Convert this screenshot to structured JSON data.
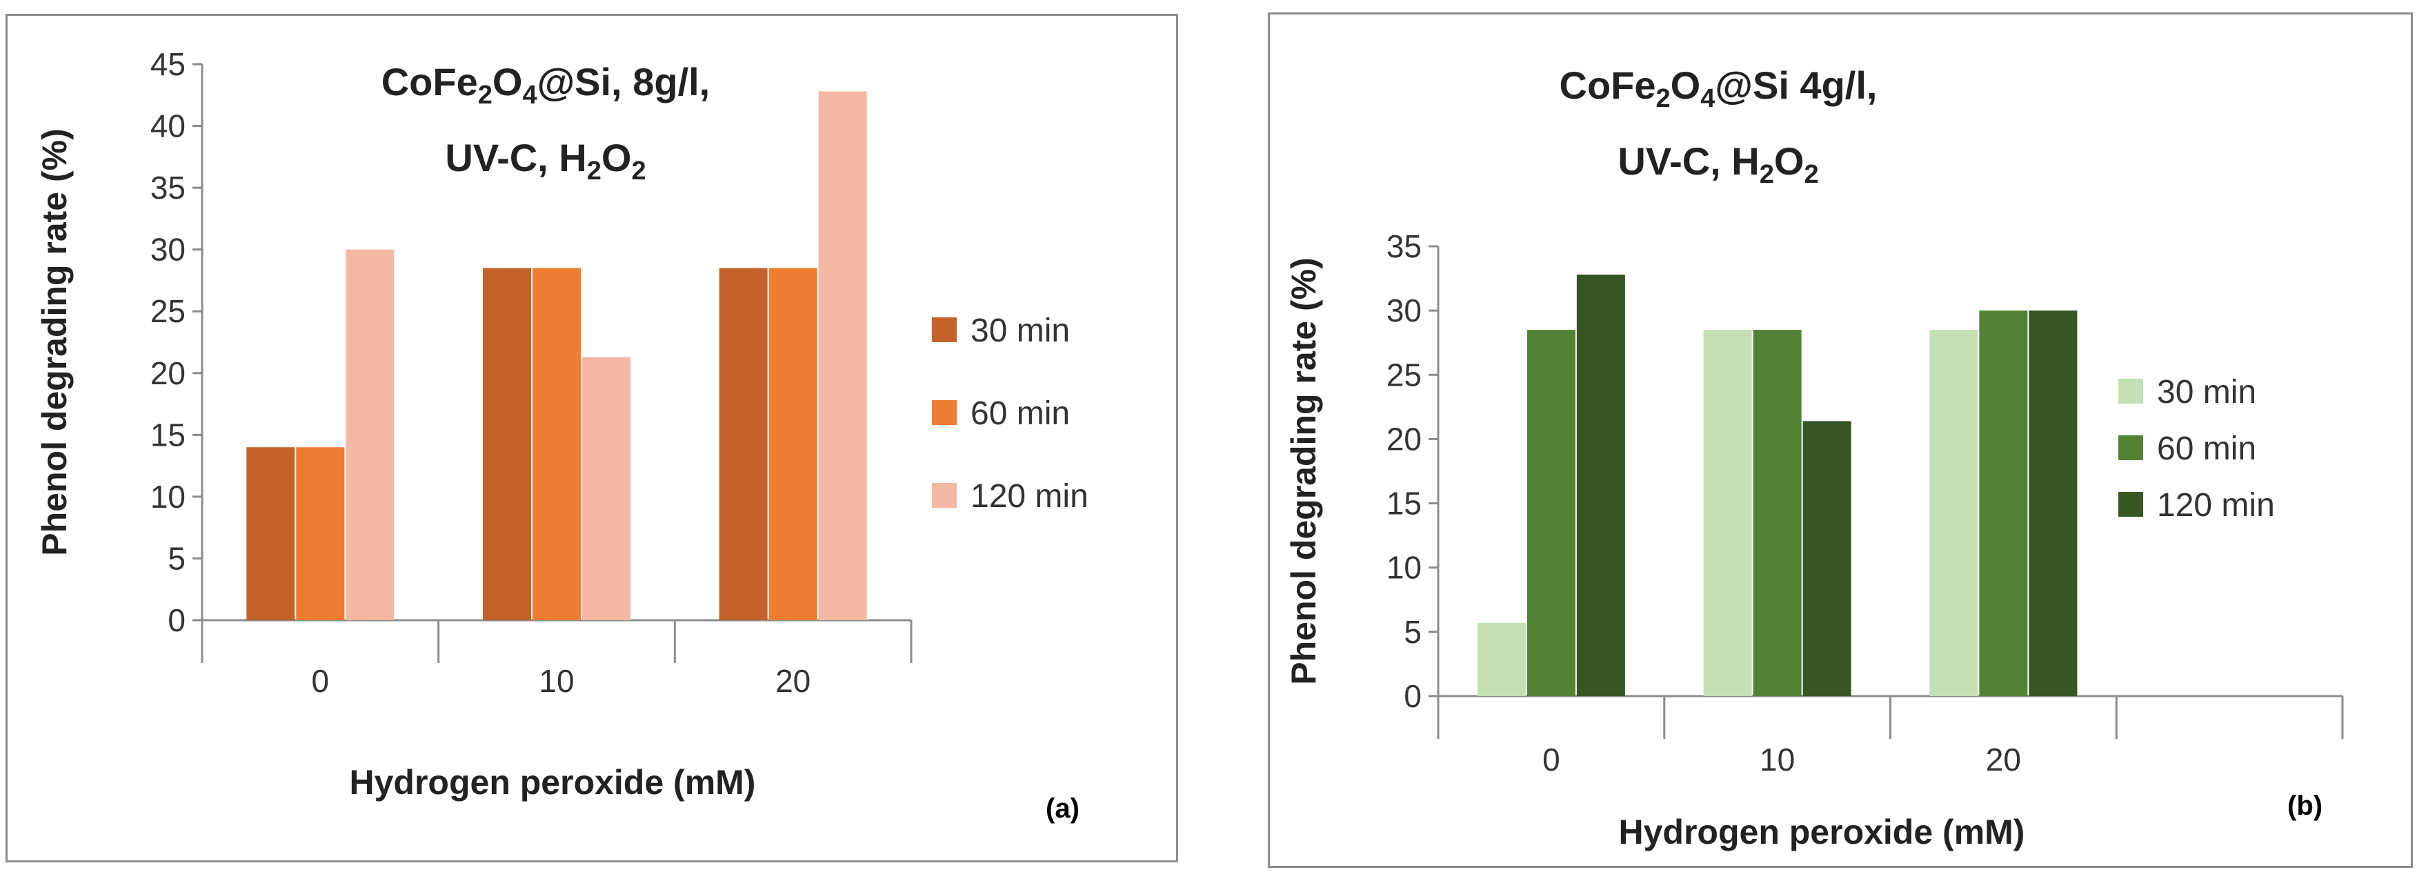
{
  "chart_data": [
    {
      "type": "bar",
      "panel_tag": "(a)",
      "title_lines": [
        [
          {
            "t": "CoFe"
          },
          {
            "t": "2",
            "sub": true
          },
          {
            "t": "O"
          },
          {
            "t": "4",
            "sub": true
          },
          {
            "t": "@Si, 8g/l,"
          }
        ],
        [
          {
            "t": "UV-C, H"
          },
          {
            "t": "2",
            "sub": true
          },
          {
            "t": "O"
          },
          {
            "t": "2",
            "sub": true
          }
        ]
      ],
      "xlabel": "Hydrogen peroxide (mM)",
      "ylabel": "Phenol degrading rate (%)",
      "categories": [
        "0",
        "10",
        "20"
      ],
      "ylim": [
        0,
        45
      ],
      "yticks": [
        0,
        5,
        10,
        15,
        20,
        25,
        30,
        35,
        40,
        45
      ],
      "grid": false,
      "legend_position": "right",
      "series": [
        {
          "name": "30 min",
          "color": "#c5622a",
          "values": [
            14,
            28.5,
            28.5
          ]
        },
        {
          "name": "60 min",
          "color": "#ed7d31",
          "values": [
            14,
            28.5,
            28.5
          ]
        },
        {
          "name": "120 min",
          "color": "#f4b9a4",
          "values": [
            30,
            21.3,
            42.8
          ]
        }
      ]
    },
    {
      "type": "bar",
      "panel_tag": "(b)",
      "title_lines": [
        [
          {
            "t": "CoFe"
          },
          {
            "t": "2",
            "sub": true
          },
          {
            "t": "O"
          },
          {
            "t": "4",
            "sub": true
          },
          {
            "t": "@Si 4g/l,"
          }
        ],
        [
          {
            "t": "UV-C, H"
          },
          {
            "t": "2",
            "sub": true
          },
          {
            "t": "O"
          },
          {
            "t": "2",
            "sub": true
          }
        ]
      ],
      "xlabel": "Hydrogen peroxide (mM)",
      "ylabel": "Phenol degrading rate (%)",
      "categories": [
        "0",
        "10",
        "20",
        ""
      ],
      "ylim": [
        0,
        35
      ],
      "yticks": [
        0,
        5,
        10,
        15,
        20,
        25,
        30,
        35
      ],
      "grid": false,
      "legend_position": "right",
      "series": [
        {
          "name": "30 min",
          "color": "#c5e0b4",
          "values": [
            5.7,
            28.5,
            28.5,
            null
          ]
        },
        {
          "name": "60 min",
          "color": "#548235",
          "values": [
            28.5,
            28.5,
            30,
            null
          ]
        },
        {
          "name": "120 min",
          "color": "#375623",
          "values": [
            32.8,
            21.4,
            30,
            null
          ]
        }
      ]
    }
  ]
}
